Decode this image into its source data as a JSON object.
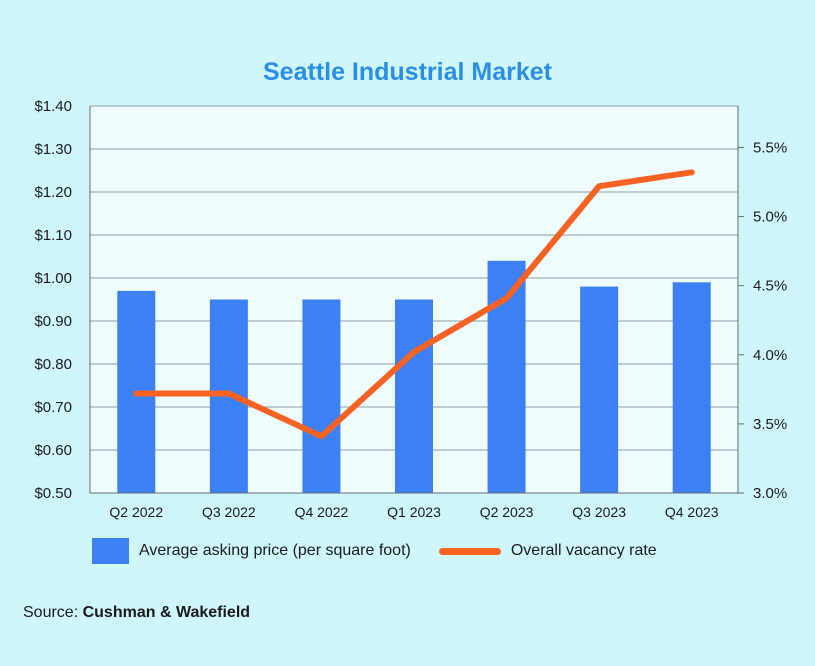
{
  "chart_data": {
    "type": "bar",
    "title": "Seattle Industrial Market",
    "categories": [
      "Q2 2022",
      "Q3 2022",
      "Q4 2022",
      "Q1 2023",
      "Q2 2023",
      "Q3 2023",
      "Q4 2023"
    ],
    "series": [
      {
        "name": "Average asking price (per square foot)",
        "type": "bar",
        "axis": "left",
        "color": "#3d7ff5",
        "values": [
          0.97,
          0.95,
          0.95,
          0.95,
          1.04,
          0.98,
          0.99
        ]
      },
      {
        "name": "Overall vacancy rate",
        "type": "line",
        "axis": "right",
        "color": "#f86223",
        "values": [
          3.72,
          3.72,
          3.41,
          4.02,
          4.41,
          5.22,
          5.32
        ]
      }
    ],
    "y_left": {
      "lim": [
        0.5,
        1.4
      ],
      "ticks": [
        0.5,
        0.6,
        0.7,
        0.8,
        0.9,
        1.0,
        1.1,
        1.2,
        1.3,
        1.4
      ],
      "tick_labels": [
        "$0.50",
        "$0.60",
        "$0.70",
        "$0.80",
        "$0.90",
        "$1.00",
        "$1.10",
        "$1.20",
        "$1.30",
        "$1.40"
      ]
    },
    "y_right": {
      "lim": [
        3.0,
        5.8
      ],
      "ticks": [
        3.0,
        3.5,
        4.0,
        4.5,
        5.0,
        5.5
      ],
      "tick_labels": [
        "3.0%",
        "3.5%",
        "4.0%",
        "4.5%",
        "5.0%",
        "5.5%"
      ]
    },
    "grid": true,
    "legend_position": "bottom"
  },
  "source": {
    "label": "Source:",
    "name": "Cushman & Wakefield"
  }
}
